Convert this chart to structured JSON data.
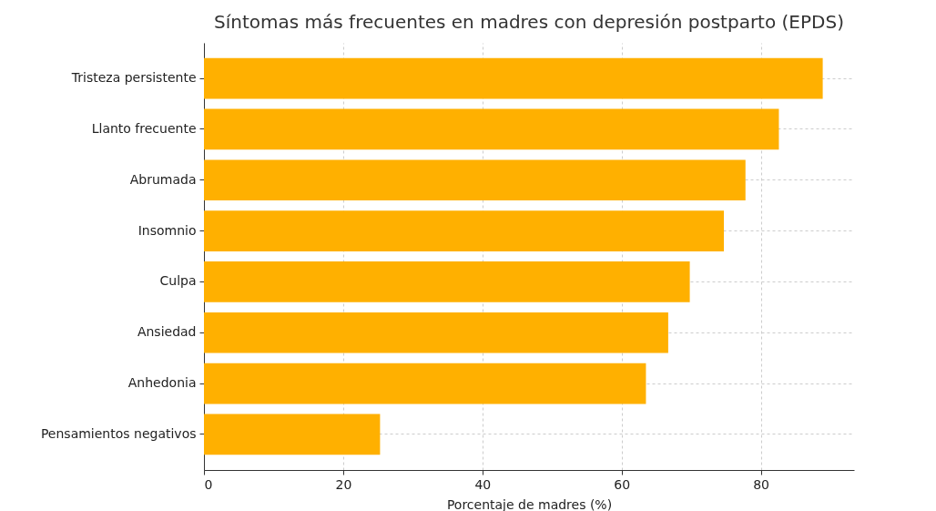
{
  "chart_data": {
    "type": "bar",
    "orientation": "horizontal",
    "title": "Síntomas más frecuentes en madres con depresión postparto (EPDS)",
    "xlabel": "Porcentaje de madres (%)",
    "categories": [
      "Tristeza persistente",
      "Llanto frecuente",
      "Abrumada",
      "Insomnio",
      "Culpa",
      "Ansiedad",
      "Anhedonia",
      "Pensamientos negativos"
    ],
    "values": [
      88.9,
      82.6,
      77.8,
      74.7,
      69.8,
      66.7,
      63.5,
      25.3
    ],
    "color": "#ffb000",
    "xlim": [
      0,
      93.4
    ],
    "xticks": [
      0,
      20,
      40,
      60,
      80
    ],
    "grid": true
  }
}
